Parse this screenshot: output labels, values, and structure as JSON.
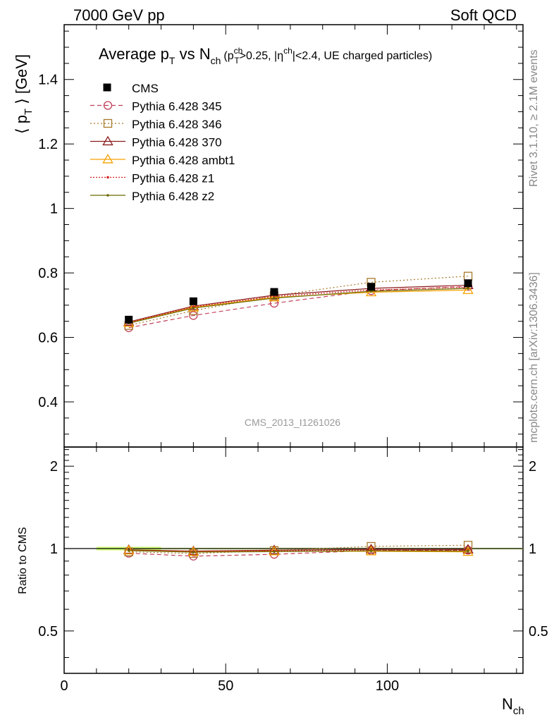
{
  "header": {
    "left": "7000 GeV pp",
    "right": "Soft QCD"
  },
  "side_text": {
    "rivet": "Rivet 3.1.10, ≥ 2.1M events",
    "mcplots": "mcplots.cern.ch [arXiv:1306.3436]"
  },
  "chart_data": {
    "type": "line",
    "title": "Average p_T vs N_ch (p_T^ch>0.25, |η^ch|<2.4, UE charged particles)",
    "title_parts": {
      "t1": "Average p",
      "t1s": "T",
      "t2": " vs N",
      "t2s": "ch",
      "c1": "(p",
      "c1sup": "ch",
      "c1sub": "T",
      "c2": ">0.25, |η",
      "c2sup": "ch",
      "c3": "|<2.4, UE charged particles)"
    },
    "analysis_id": "CMS_2013_I1261026",
    "xlabel": "N_ch",
    "xlabel_parts": {
      "main": "N",
      "sub": "ch"
    },
    "ylabel": "⟨ p_T ⟩ [GeV]",
    "ylabel_parts": {
      "pre": "⟨ p",
      "sub": "T",
      "post": " ⟩ [GeV]"
    },
    "ratio_ylabel": "Ratio to CMS",
    "xlim": [
      0,
      142
    ],
    "ylim": [
      0.26,
      1.57
    ],
    "ratio_ylim": [
      0.35,
      2.35
    ],
    "ratio_log": true,
    "x_ticks": [
      "0",
      "50",
      "100"
    ],
    "y_ticks": [
      "0.4",
      "0.6",
      "0.8",
      "1",
      "1.2",
      "1.4"
    ],
    "ratio_ticks": [
      "0.5",
      "1",
      "2"
    ],
    "legend_position": "top-left",
    "x": [
      20,
      40,
      65,
      95,
      125
    ],
    "data": {
      "name": "CMS",
      "values": [
        0.655,
        0.712,
        0.741,
        0.757,
        0.768
      ]
    },
    "series": [
      {
        "name": "Pythia 6.428 345",
        "color": "#c0405a",
        "dash": "6,4",
        "marker": "circle",
        "values": [
          0.63,
          0.668,
          0.706,
          0.745,
          0.758
        ]
      },
      {
        "name": "Pythia 6.428 346",
        "color": "#a8782a",
        "dash": "2,3",
        "marker": "square",
        "values": [
          0.637,
          0.683,
          0.729,
          0.771,
          0.79
        ]
      },
      {
        "name": "Pythia 6.428 370",
        "color": "#8b1a1a",
        "dash": "",
        "marker": "triangle",
        "values": [
          0.648,
          0.697,
          0.731,
          0.752,
          0.762
        ]
      },
      {
        "name": "Pythia 6.428 ambt1",
        "color": "#f5a000",
        "dash": "",
        "marker": "triangle",
        "values": [
          0.645,
          0.693,
          0.724,
          0.74,
          0.747
        ]
      },
      {
        "name": "Pythia 6.428 z1",
        "color": "#d42020",
        "dash": "2,2",
        "marker": "dot",
        "values": [
          0.646,
          0.695,
          0.727,
          0.747,
          0.756
        ]
      },
      {
        "name": "Pythia 6.428 z2",
        "color": "#6b6b00",
        "dash": "",
        "marker": "dot",
        "values": [
          0.644,
          0.691,
          0.722,
          0.743,
          0.752
        ]
      }
    ]
  }
}
